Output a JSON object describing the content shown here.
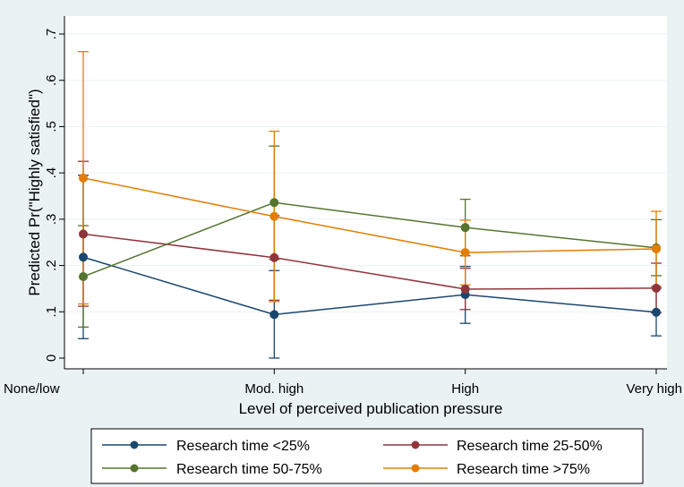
{
  "chart_data": {
    "type": "line",
    "title": "",
    "xlabel": "Level of perceived publication pressure",
    "ylabel": "Predicted Pr(\"Highly satisfied\")",
    "categories": [
      "None/low",
      "Mod. high",
      "High",
      "Very high"
    ],
    "ylim": [
      0,
      0.7
    ],
    "yticks": [
      0,
      0.1,
      0.2,
      0.3,
      0.4,
      0.5,
      0.6,
      0.7
    ],
    "ytick_labels": [
      "0",
      ".1",
      ".2",
      ".3",
      ".4",
      ".5",
      ".6",
      ".7"
    ],
    "grid": true,
    "legend_position": "bottom",
    "series": [
      {
        "name": "Research time <25%",
        "color": "#1a476f",
        "values": [
          0.218,
          0.094,
          0.137,
          0.099
        ],
        "ci_low": [
          0.042,
          0.0,
          0.075,
          0.048
        ],
        "ci_high": [
          0.395,
          0.189,
          0.198,
          0.151
        ]
      },
      {
        "name": "Research time 25-50%",
        "color": "#90353b",
        "values": [
          0.268,
          0.217,
          0.149,
          0.151
        ],
        "ci_low": [
          0.112,
          0.125,
          0.105,
          0.098
        ],
        "ci_high": [
          0.425,
          0.308,
          0.194,
          0.205
        ]
      },
      {
        "name": "Research time 50-75%",
        "color": "#55752f",
        "values": [
          0.176,
          0.336,
          0.282,
          0.238
        ],
        "ci_low": [
          0.067,
          0.213,
          0.221,
          0.178
        ],
        "ci_high": [
          0.286,
          0.458,
          0.343,
          0.299
        ]
      },
      {
        "name": "Research time >75%",
        "color": "#e37e00",
        "values": [
          0.389,
          0.306,
          0.228,
          0.236
        ],
        "ci_low": [
          0.117,
          0.122,
          0.158,
          0.155
        ],
        "ci_high": [
          0.662,
          0.49,
          0.298,
          0.317
        ]
      }
    ]
  }
}
